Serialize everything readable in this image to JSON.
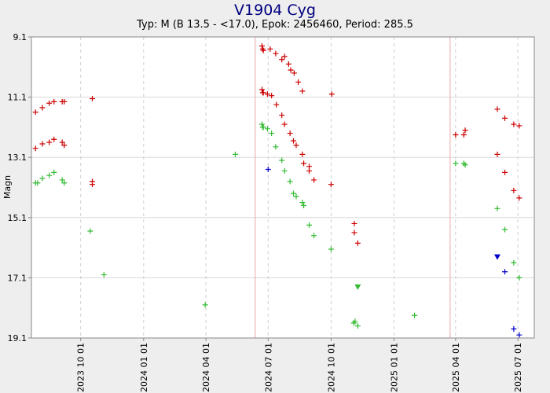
{
  "chart_data": {
    "type": "scatter",
    "title": "V1904 Cyg",
    "subtitle": "Typ: M (B 13.5 - <17.0), Epok: 2456460, Period: 285.5",
    "xlabel": "",
    "ylabel": "Magn",
    "x_type": "date",
    "xlim": [
      "2023-07-21",
      "2025-07-25"
    ],
    "ylim": [
      19.1,
      9.1
    ],
    "y_inverted": true,
    "y_ticks": [
      "9.1",
      "11.1",
      "13.1",
      "15.1",
      "17.1",
      "19.1"
    ],
    "x_ticks": [
      "2023 10 01",
      "2024 01 01",
      "2024 04 01",
      "2024 07 01",
      "2024 10 01",
      "2025 01 01",
      "2025 04 01",
      "2025 07 01"
    ],
    "grid": true,
    "colors": {
      "red": "#cc0000",
      "green": "#33bb33",
      "blue": "#0000cc",
      "title": "#000080",
      "maxima_line": "#e8a8a8"
    },
    "maxima_dates": [
      "2023-07-21",
      "2024-06-12",
      "2025-03-24"
    ],
    "series": [
      {
        "color": "red",
        "marker": "plus",
        "points": [
          [
            "2023-07-27",
            11.6
          ],
          [
            "2023-08-06",
            11.45
          ],
          [
            "2023-08-16",
            11.3
          ],
          [
            "2023-08-23",
            11.25
          ],
          [
            "2023-09-04",
            11.25
          ],
          [
            "2023-09-07",
            11.25
          ],
          [
            "2023-10-18",
            11.15
          ],
          [
            "2023-07-27",
            12.8
          ],
          [
            "2023-08-06",
            12.65
          ],
          [
            "2023-08-16",
            12.6
          ],
          [
            "2023-08-23",
            12.5
          ],
          [
            "2023-09-04",
            12.6
          ],
          [
            "2023-09-07",
            12.7
          ],
          [
            "2023-10-18",
            13.9
          ],
          [
            "2023-10-18",
            14.0
          ],
          [
            "2024-06-22",
            9.4
          ],
          [
            "2024-06-23",
            9.5
          ],
          [
            "2024-06-24",
            9.55
          ],
          [
            "2024-07-04",
            9.5
          ],
          [
            "2024-07-12",
            9.65
          ],
          [
            "2024-07-21",
            9.85
          ],
          [
            "2024-07-25",
            9.75
          ],
          [
            "2024-07-31",
            10.0
          ],
          [
            "2024-08-03",
            10.2
          ],
          [
            "2024-08-08",
            10.3
          ],
          [
            "2024-08-14",
            10.6
          ],
          [
            "2024-08-20",
            10.9
          ],
          [
            "2024-10-02",
            11.0
          ],
          [
            "2024-06-22",
            10.85
          ],
          [
            "2024-06-23",
            10.95
          ],
          [
            "2024-06-24",
            10.95
          ],
          [
            "2024-06-30",
            11.0
          ],
          [
            "2024-07-06",
            11.05
          ],
          [
            "2024-07-13",
            11.35
          ],
          [
            "2024-07-21",
            11.7
          ],
          [
            "2024-07-25",
            12.0
          ],
          [
            "2024-08-02",
            12.3
          ],
          [
            "2024-08-07",
            12.55
          ],
          [
            "2024-08-11",
            12.7
          ],
          [
            "2024-08-20",
            13.0
          ],
          [
            "2024-08-22",
            13.3
          ],
          [
            "2024-08-30",
            13.4
          ],
          [
            "2024-08-30",
            13.55
          ],
          [
            "2024-09-06",
            13.85
          ],
          [
            "2024-10-01",
            14.0
          ],
          [
            "2024-11-04",
            15.3
          ],
          [
            "2024-11-04",
            15.6
          ],
          [
            "2024-11-09",
            15.95
          ],
          [
            "2025-04-01",
            12.35
          ],
          [
            "2025-04-13",
            12.35
          ],
          [
            "2025-04-15",
            12.2
          ],
          [
            "2025-06-01",
            11.5
          ],
          [
            "2025-06-12",
            11.8
          ],
          [
            "2025-06-25",
            12.0
          ],
          [
            "2025-07-03",
            12.05
          ],
          [
            "2025-06-01",
            13.0
          ],
          [
            "2025-06-12",
            13.6
          ],
          [
            "2025-06-25",
            14.2
          ],
          [
            "2025-07-03",
            14.45
          ]
        ]
      },
      {
        "color": "green",
        "marker": "plus",
        "points": [
          [
            "2023-07-27",
            13.95
          ],
          [
            "2023-07-30",
            13.95
          ],
          [
            "2023-08-06",
            13.8
          ],
          [
            "2023-08-16",
            13.7
          ],
          [
            "2023-08-23",
            13.6
          ],
          [
            "2023-09-04",
            13.85
          ],
          [
            "2023-09-07",
            13.95
          ],
          [
            "2023-10-15",
            15.55
          ],
          [
            "2023-11-04",
            17.0
          ],
          [
            "2024-03-31",
            18.0
          ],
          [
            "2024-05-14",
            13.0
          ],
          [
            "2024-06-22",
            12.0
          ],
          [
            "2024-06-23",
            12.1
          ],
          [
            "2024-06-24",
            12.1
          ],
          [
            "2024-06-30",
            12.15
          ],
          [
            "2024-07-06",
            12.3
          ],
          [
            "2024-07-12",
            12.75
          ],
          [
            "2024-07-21",
            13.2
          ],
          [
            "2024-07-25",
            13.55
          ],
          [
            "2024-08-02",
            13.9
          ],
          [
            "2024-08-07",
            14.3
          ],
          [
            "2024-08-11",
            14.4
          ],
          [
            "2024-08-20",
            14.6
          ],
          [
            "2024-08-22",
            14.7
          ],
          [
            "2024-08-30",
            15.35
          ],
          [
            "2024-09-06",
            15.7
          ],
          [
            "2024-10-01",
            16.15
          ],
          [
            "2024-11-03",
            18.6
          ],
          [
            "2024-11-05",
            18.55
          ],
          [
            "2024-11-09",
            18.7
          ],
          [
            "2025-01-31",
            18.35
          ],
          [
            "2025-04-01",
            13.3
          ],
          [
            "2025-04-13",
            13.3
          ],
          [
            "2025-04-15",
            13.35
          ],
          [
            "2025-06-01",
            14.8
          ],
          [
            "2025-06-12",
            15.5
          ],
          [
            "2025-06-25",
            16.6
          ],
          [
            "2025-07-03",
            17.1
          ]
        ]
      },
      {
        "color": "blue",
        "marker": "plus",
        "points": [
          [
            "2024-07-01",
            13.5
          ],
          [
            "2025-06-12",
            16.9
          ],
          [
            "2025-06-25",
            18.8
          ],
          [
            "2025-07-03",
            19.0
          ]
        ]
      },
      {
        "color": "blue",
        "marker": "triangle-down",
        "points": [
          [
            "2025-06-01",
            16.4
          ]
        ]
      },
      {
        "color": "green",
        "marker": "triangle-down",
        "points": [
          [
            "2024-11-09",
            17.4
          ]
        ]
      }
    ]
  }
}
